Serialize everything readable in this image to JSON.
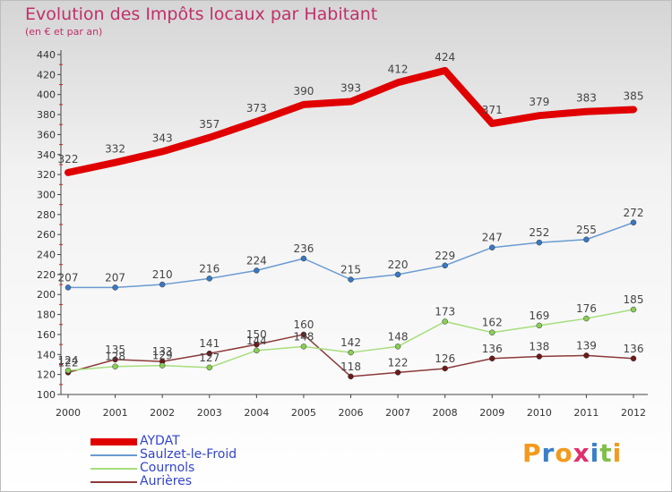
{
  "title": "Evolution des Impôts locaux par Habitant",
  "subtitle": "(en € et par an)",
  "logo": {
    "text": "Proxiti",
    "letters": [
      {
        "ch": "P",
        "color": "#f39a1e"
      },
      {
        "ch": "r",
        "color": "#3a7fc8"
      },
      {
        "ch": "o",
        "color": "#f39a1e"
      },
      {
        "ch": "x",
        "color": "#e0306a"
      },
      {
        "ch": "i",
        "color": "#3a7fc8"
      },
      {
        "ch": "t",
        "color": "#7fc04a"
      },
      {
        "ch": "i",
        "color": "#f39a1e"
      }
    ]
  },
  "chart_data": {
    "type": "line",
    "x": [
      2000,
      2001,
      2002,
      2003,
      2004,
      2005,
      2006,
      2007,
      2008,
      2009,
      2010,
      2011,
      2012
    ],
    "ylim": [
      100,
      440
    ],
    "yticks": [
      100,
      120,
      140,
      160,
      180,
      200,
      220,
      240,
      260,
      280,
      300,
      320,
      340,
      360,
      380,
      400,
      420,
      440
    ],
    "grid": false,
    "legend_position": "bottom-left",
    "series": [
      {
        "name": "AYDAT",
        "color": "#e00000",
        "width": 8,
        "values": [
          322,
          332,
          343,
          357,
          373,
          390,
          393,
          412,
          424,
          371,
          379,
          383,
          385
        ],
        "labels": true
      },
      {
        "name": "Saulzet-le-Froid",
        "color": "#6a9bd1",
        "marker": "#3a78c0",
        "width": 1.5,
        "values": [
          207,
          207,
          210,
          216,
          224,
          236,
          215,
          220,
          229,
          247,
          252,
          255,
          272
        ],
        "labels": true
      },
      {
        "name": "Cournols",
        "color": "#a6de7c",
        "marker": "#8acd57",
        "width": 1.5,
        "values": [
          124,
          128,
          129,
          127,
          144,
          148,
          142,
          148,
          173,
          162,
          169,
          176,
          185
        ],
        "labels": true
      },
      {
        "name": "Aurières",
        "color": "#8b3a3a",
        "marker": "#6b1a1a",
        "width": 1.5,
        "values": [
          122,
          135,
          133,
          141,
          150,
          160,
          118,
          122,
          126,
          136,
          138,
          139,
          136
        ],
        "labels": true
      }
    ]
  }
}
